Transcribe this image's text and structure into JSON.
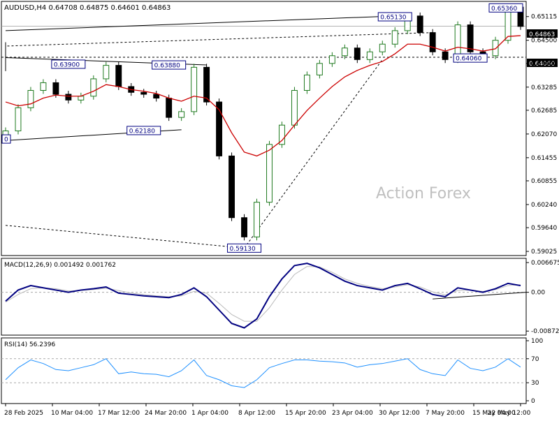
{
  "chart_data": {
    "type": "line",
    "symbol_header": "AUDUSD,H4  0.64708 0.64875 0.64601 0.64863",
    "watermark": "Action Forex",
    "colors": {
      "bull": "#1f7a1f",
      "bear": "#000000",
      "ma": "#cc0000",
      "macd": "#000080",
      "signal": "#bbbbbb",
      "rsi": "#1e90ff",
      "grid": "#aaaaaa",
      "box_border": "#000080",
      "frame": "#000000"
    },
    "price_axis": {
      "ylim": [
        0.5899,
        0.654
      ],
      "ticks": [
        "0.65115",
        "0.64500",
        "0.63900",
        "0.63285",
        "0.62685",
        "0.62070",
        "0.61455",
        "0.60855",
        "0.60240",
        "0.59640",
        "0.59025"
      ],
      "current_price_label": "0.64863",
      "current_price": 0.64863,
      "level_label": "0.64060",
      "level": 0.6406
    },
    "x_axis_labels": [
      "28 Feb 2025",
      "10 Mar 04:00",
      "17 Mar 12:00",
      "24 Mar 20:00",
      "1 Apr 04:00",
      "8 Apr 12:00",
      "15 Apr 20:00",
      "23 Apr 04:00",
      "30 Apr 12:00",
      "7 May 20:00",
      "15 May 04:00",
      "22 May 12:00"
    ],
    "x_range": [
      "28 Feb 2025",
      "23 May 2025"
    ],
    "price_series": {
      "name": "",
      "x": [
        "28 Feb",
        "3 Mar",
        "5 Mar",
        "7 Mar",
        "10 Mar",
        "12 Mar",
        "14 Mar",
        "17 Mar",
        "19 Mar",
        "21 Mar",
        "24 Mar",
        "26 Mar",
        "28 Mar",
        "31 Mar",
        "1 Apr",
        "2 Apr",
        "3 Apr",
        "4 Apr",
        "7 Apr",
        "8 Apr",
        "9 Apr",
        "10 Apr",
        "11 Apr",
        "14 Apr",
        "15 Apr",
        "17 Apr",
        "21 Apr",
        "23 Apr",
        "25 Apr",
        "28 Apr",
        "30 Apr",
        "2 May",
        "5 May",
        "7 May",
        "9 May",
        "12 May",
        "14 May",
        "16 May",
        "19 May",
        "21 May",
        "22 May",
        "23 May"
      ],
      "values": [
        0.6215,
        0.6275,
        0.632,
        0.634,
        0.631,
        0.6295,
        0.6305,
        0.635,
        0.6385,
        0.633,
        0.6315,
        0.631,
        0.63,
        0.625,
        0.6265,
        0.638,
        0.629,
        0.615,
        0.599,
        0.594,
        0.603,
        0.618,
        0.623,
        0.632,
        0.636,
        0.639,
        0.641,
        0.643,
        0.64,
        0.642,
        0.644,
        0.6475,
        0.6513,
        0.647,
        0.642,
        0.64,
        0.649,
        0.642,
        0.641,
        0.645,
        0.6536,
        0.6486
      ]
    },
    "moving_average": {
      "name": "",
      "values": [
        0.629,
        0.628,
        0.6285,
        0.63,
        0.6308,
        0.6305,
        0.6305,
        0.6318,
        0.6335,
        0.633,
        0.6322,
        0.6318,
        0.6312,
        0.63,
        0.6292,
        0.6305,
        0.63,
        0.627,
        0.621,
        0.616,
        0.615,
        0.6165,
        0.619,
        0.623,
        0.6268,
        0.63,
        0.633,
        0.6355,
        0.6372,
        0.6385,
        0.6395,
        0.6415,
        0.644,
        0.644,
        0.6432,
        0.6422,
        0.6432,
        0.6428,
        0.6422,
        0.6428,
        0.646,
        0.6462
      ]
    },
    "price_annotations": [
      {
        "label": "0.63900",
        "x": "12 Mar",
        "y": 0.6388
      },
      {
        "label": "0.63880",
        "x": "31 Mar",
        "y": 0.6386
      },
      {
        "label": "0.62180",
        "x": "26 Mar",
        "y": 0.6216
      },
      {
        "label": "0.59130",
        "x": "8 Apr",
        "y": 0.5911
      },
      {
        "label": "0.65130",
        "x": "2 May",
        "y": 0.6511
      },
      {
        "label": "0.65360",
        "x": "22 May",
        "y": 0.6534
      },
      {
        "label": "0.64060",
        "x": "16 May",
        "y": 0.6404
      },
      {
        "label": "0",
        "x": "28 Feb",
        "y": 0.6194
      }
    ],
    "trendlines": [
      {
        "from": [
          "28 Feb",
          0.6405
        ],
        "to": [
          "3 Apr",
          0.6386
        ],
        "style": "solid"
      },
      {
        "from": [
          "28 Feb",
          0.619
        ],
        "to": [
          "1 Apr",
          0.6218
        ],
        "style": "solid"
      },
      {
        "from": [
          "28 Feb",
          0.597
        ],
        "to": [
          "8 Apr",
          0.5911
        ],
        "style": "dashed"
      },
      {
        "from": [
          "8 Apr",
          0.5911
        ],
        "to": [
          "30 Apr",
          0.64
        ],
        "style": "dashed"
      },
      {
        "from": [
          "2 May",
          0.6513
        ],
        "to": [
          "20 May",
          0.6475
        ],
        "style": "solid"
      },
      {
        "from": [
          "6 May",
          0.637
        ],
        "to": [
          "20 May",
          0.6445
        ],
        "style": "solid"
      },
      {
        "from": [
          "9 May",
          0.647
        ],
        "to": [
          "15 May",
          0.6435
        ],
        "style": "dashed"
      },
      {
        "from": [
          "28 Feb",
          0.6406
        ],
        "to": [
          "23 May",
          0.6406
        ],
        "style": "dashed-level"
      }
    ],
    "macd": {
      "title": "MACD(12,26,9) 0.001492 0.001762",
      "ylim": [
        -0.009,
        0.007
      ],
      "ticks": [
        "0.006675",
        "0.00",
        "-0.008724"
      ],
      "macd_values": [
        -0.002,
        0.0005,
        0.0015,
        0.001,
        0.0005,
        0.0,
        0.0005,
        0.0008,
        0.0012,
        -0.0002,
        -0.0005,
        -0.0008,
        -0.001,
        -0.0012,
        -0.0005,
        0.001,
        -0.001,
        -0.004,
        -0.007,
        -0.008,
        -0.006,
        -0.001,
        0.003,
        0.006,
        0.0065,
        0.0055,
        0.004,
        0.0025,
        0.0015,
        0.001,
        0.0005,
        0.0015,
        0.002,
        0.0008,
        -0.0005,
        -0.001,
        0.001,
        0.0005,
        0.0,
        0.0008,
        0.002,
        0.0015
      ],
      "signal_values": [
        -0.0022,
        -0.0005,
        0.0008,
        0.001,
        0.0008,
        0.0003,
        0.0004,
        0.0006,
        0.0009,
        0.0004,
        -0.0002,
        -0.0005,
        -0.0008,
        -0.001,
        -0.0008,
        0.0002,
        -0.0002,
        -0.0025,
        -0.005,
        -0.0065,
        -0.0065,
        -0.0035,
        0.0005,
        0.004,
        0.0058,
        0.0057,
        0.0045,
        0.003,
        0.002,
        0.0013,
        0.0008,
        0.0012,
        0.0017,
        0.0012,
        0.0001,
        -0.0006,
        0.0004,
        0.0005,
        0.0002,
        0.0006,
        0.0015,
        0.0017
      ],
      "trendline": {
        "from": [
          "9 May",
          -0.0015
        ],
        "to": [
          "23 May",
          0.0
        ]
      }
    },
    "rsi": {
      "title": "RSI(14) 56.2396",
      "ylim": [
        0,
        100
      ],
      "ticks": [
        "100",
        "70",
        "30",
        "0"
      ],
      "levels": [
        70,
        30
      ],
      "values": [
        35,
        55,
        68,
        62,
        52,
        50,
        55,
        60,
        70,
        45,
        48,
        45,
        44,
        40,
        50,
        68,
        42,
        35,
        25,
        22,
        35,
        55,
        62,
        68,
        68,
        66,
        65,
        63,
        56,
        60,
        62,
        66,
        70,
        52,
        45,
        42,
        68,
        54,
        50,
        56,
        70,
        56
      ]
    }
  }
}
